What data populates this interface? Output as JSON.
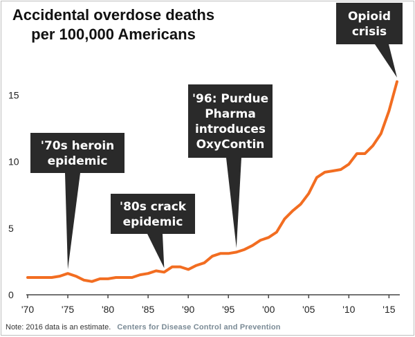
{
  "title": "Accidental overdose deaths\nper 100,000 Americans",
  "footer": {
    "note": "Note: 2016 data is an estimate.",
    "source": "Centers for Disease Control and Prevention"
  },
  "colors": {
    "line": "#f26d21",
    "callout": "#2a2a2a",
    "axis": "#444444"
  },
  "chart_data": {
    "type": "line",
    "title": "Accidental overdose deaths per 100,000 Americans",
    "xlabel": "",
    "ylabel": "",
    "xlim": [
      1970,
      2016
    ],
    "ylim": [
      0,
      16
    ],
    "grid": false,
    "y_ticks": [
      0,
      5,
      10,
      15
    ],
    "x_ticks": [
      1970,
      1975,
      1980,
      1985,
      1990,
      1995,
      2000,
      2005,
      2010,
      2015
    ],
    "x_tick_labels": [
      "'70",
      "'75",
      "'80",
      "'85",
      "'90",
      "'95",
      "'00",
      "'05",
      "'10",
      "'15"
    ],
    "series": [
      {
        "x": [
          1970,
          1971,
          1972,
          1973,
          1974,
          1975,
          1976,
          1977,
          1978,
          1979,
          1980,
          1981,
          1982,
          1983,
          1984,
          1985,
          1986,
          1987,
          1988,
          1989,
          1990,
          1991,
          1992,
          1993,
          1994,
          1995,
          1996,
          1997,
          1998,
          1999,
          2000,
          2001,
          2002,
          2003,
          2004,
          2005,
          2006,
          2007,
          2008,
          2009,
          2010,
          2011,
          2012,
          2013,
          2014,
          2015,
          2016
        ],
        "y": [
          1.3,
          1.3,
          1.3,
          1.3,
          1.4,
          1.6,
          1.4,
          1.1,
          1.0,
          1.2,
          1.2,
          1.3,
          1.3,
          1.3,
          1.5,
          1.6,
          1.8,
          1.7,
          2.1,
          2.1,
          1.9,
          2.2,
          2.4,
          2.9,
          3.1,
          3.1,
          3.2,
          3.4,
          3.7,
          4.1,
          4.3,
          4.7,
          5.7,
          6.3,
          6.8,
          7.6,
          8.8,
          9.2,
          9.3,
          9.4,
          9.8,
          10.6,
          10.6,
          11.2,
          12.1,
          13.8,
          16.0
        ]
      }
    ],
    "annotations": [
      {
        "text": "'70s heroin\nepidemic",
        "x": 1975,
        "y": 1.6
      },
      {
        "text": "'80s crack\nepidemic",
        "x": 1987,
        "y": 1.7
      },
      {
        "text": "'96: Purdue\nPharma\nintroduces\nOxyContin",
        "x": 1996,
        "y": 3.2
      },
      {
        "text": "Opioid\ncrisis",
        "x": 2016,
        "y": 16.0
      }
    ]
  }
}
